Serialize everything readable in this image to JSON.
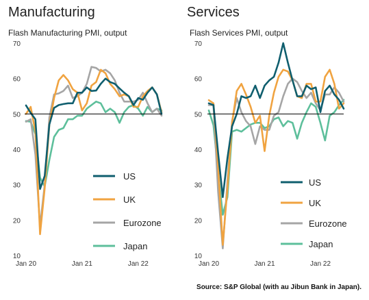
{
  "source": "Source: S&P Global (with au Jibun Bank in Japan).",
  "colors": {
    "US": "#0f5e6e",
    "UK": "#f0a340",
    "Eurozone": "#a5a5a5",
    "Japan": "#5dbf9b",
    "reference": "#000000"
  },
  "chart_data": [
    {
      "type": "line",
      "heading": "Manufacturing",
      "title": "Flash Manufacturing PMI, output",
      "x_ticks": [
        "Jan 20",
        "Jan 21",
        "Jan 22"
      ],
      "x": [
        "2020-01",
        "2020-02",
        "2020-03",
        "2020-04",
        "2020-05",
        "2020-06",
        "2020-07",
        "2020-08",
        "2020-09",
        "2020-10",
        "2020-11",
        "2020-12",
        "2021-01",
        "2021-02",
        "2021-03",
        "2021-04",
        "2021-05",
        "2021-06",
        "2021-07",
        "2021-08",
        "2021-09",
        "2021-10",
        "2021-11",
        "2021-12",
        "2022-01",
        "2022-02",
        "2022-03",
        "2022-04",
        "2022-05",
        "2022-06"
      ],
      "ylim": [
        10,
        70
      ],
      "y_ticks": [
        10,
        20,
        30,
        40,
        50,
        60,
        70
      ],
      "reference_line": 50,
      "legend_position": "bottom-right",
      "series": [
        {
          "name": "US",
          "values": [
            52.4,
            50.3,
            48.5,
            28.8,
            32.5,
            47.0,
            51.7,
            52.5,
            52.8,
            53.0,
            53.0,
            56.0,
            56.0,
            57.5,
            56.5,
            56.6,
            58.5,
            60.0,
            59.0,
            58.5,
            57.2,
            56.0,
            55.0,
            52.5,
            54.5,
            54.0,
            56.0,
            57.5,
            55.5,
            50.0
          ]
        },
        {
          "name": "UK",
          "values": [
            50.0,
            52.0,
            45.0,
            16.0,
            29.0,
            47.0,
            54.5,
            59.5,
            61.0,
            59.5,
            57.0,
            56.0,
            51.0,
            53.0,
            58.0,
            59.0,
            62.5,
            61.5,
            58.5,
            57.0,
            55.0,
            55.5,
            55.0,
            52.0,
            52.0,
            55.0,
            56.5,
            57.5,
            55.5,
            50.5
          ]
        },
        {
          "name": "Eurozone",
          "values": [
            47.8,
            48.5,
            38.5,
            18.2,
            30.0,
            49.0,
            55.5,
            55.8,
            56.5,
            58.0,
            54.5,
            55.0,
            56.0,
            58.5,
            63.3,
            63.0,
            62.0,
            62.5,
            61.5,
            59.5,
            56.0,
            53.5,
            53.5,
            53.5,
            54.0,
            56.0,
            53.0,
            50.5,
            51.5,
            49.5
          ]
        },
        {
          "name": "Japan",
          "values": [
            48.0,
            47.8,
            44.3,
            32.0,
            29.5,
            37.0,
            43.5,
            45.5,
            46.0,
            48.5,
            48.5,
            49.5,
            49.5,
            51.5,
            52.5,
            53.5,
            53.0,
            50.5,
            51.5,
            50.5,
            47.5,
            50.5,
            52.0,
            52.5,
            51.5,
            49.5,
            52.0,
            50.5,
            51.5,
            51.0
          ]
        }
      ]
    },
    {
      "type": "line",
      "heading": "Services",
      "title": "Flash Services PMI, output",
      "x_ticks": [
        "Jan 20",
        "Jan 21",
        "Jan 22"
      ],
      "x": [
        "2020-01",
        "2020-02",
        "2020-03",
        "2020-04",
        "2020-05",
        "2020-06",
        "2020-07",
        "2020-08",
        "2020-09",
        "2020-10",
        "2020-11",
        "2020-12",
        "2021-01",
        "2021-02",
        "2021-03",
        "2021-04",
        "2021-05",
        "2021-06",
        "2021-07",
        "2021-08",
        "2021-09",
        "2021-10",
        "2021-11",
        "2021-12",
        "2022-01",
        "2022-02",
        "2022-03",
        "2022-04",
        "2022-05",
        "2022-06"
      ],
      "ylim": [
        10,
        70
      ],
      "y_ticks": [
        10,
        20,
        30,
        40,
        50,
        60,
        70
      ],
      "reference_line": 50,
      "legend_position": "bottom-right",
      "series": [
        {
          "name": "US",
          "values": [
            53.0,
            52.5,
            39.0,
            26.5,
            37.5,
            46.5,
            50.0,
            55.0,
            54.5,
            55.0,
            58.0,
            54.5,
            58.0,
            59.5,
            60.5,
            64.5,
            70.0,
            64.5,
            59.5,
            55.0,
            55.0,
            58.0,
            57.0,
            57.5,
            50.5,
            56.5,
            58.0,
            55.5,
            54.0,
            51.5
          ]
        },
        {
          "name": "UK",
          "values": [
            53.9,
            53.0,
            35.0,
            13.0,
            29.0,
            47.5,
            56.5,
            58.5,
            55.5,
            52.0,
            47.5,
            49.5,
            39.5,
            49.5,
            56.0,
            60.5,
            62.5,
            62.0,
            59.5,
            55.0,
            54.5,
            58.5,
            58.5,
            53.5,
            53.5,
            60.5,
            62.5,
            58.5,
            51.5,
            53.0
          ]
        },
        {
          "name": "Eurozone",
          "values": [
            52.5,
            52.5,
            28.0,
            12.0,
            31.0,
            48.0,
            54.5,
            50.5,
            48.0,
            46.5,
            41.5,
            46.5,
            45.5,
            45.5,
            49.5,
            50.5,
            55.0,
            58.5,
            60.0,
            59.0,
            56.5,
            54.5,
            56.0,
            53.0,
            51.0,
            55.5,
            55.5,
            57.5,
            56.0,
            53.5
          ]
        },
        {
          "name": "Japan",
          "values": [
            51.0,
            46.8,
            33.8,
            21.5,
            26.5,
            45.0,
            45.5,
            45.0,
            46.0,
            47.0,
            47.5,
            47.5,
            46.0,
            46.5,
            48.5,
            49.0,
            46.5,
            48.0,
            47.5,
            43.0,
            47.5,
            50.5,
            53.0,
            52.0,
            47.5,
            42.5,
            49.5,
            50.5,
            52.5,
            54.0
          ]
        }
      ]
    }
  ]
}
